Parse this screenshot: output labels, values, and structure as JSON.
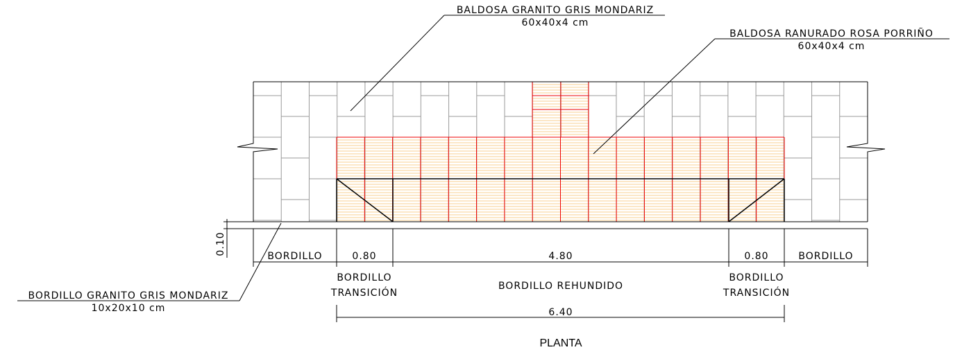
{
  "labels": {
    "top_tile": {
      "name": "BALDOSA GRANITO GRIS MONDARIZ",
      "size": "60x40x4 cm"
    },
    "tactile_tile": {
      "name": "BALDOSA RANURADO ROSA PORRIÑO",
      "size": "60x40x4 cm"
    },
    "curb": {
      "name": "BORDILLO GRANITO GRIS MONDARIZ",
      "size": "10x20x10 cm"
    }
  },
  "dimensions": {
    "curb_width": "0.10",
    "segments": [
      "BORDILLO",
      "0.80",
      "4.80",
      "0.80",
      "BORDILLO"
    ],
    "left_transition": [
      "BORDILLO",
      "TRANSICIÓN"
    ],
    "center": "BORDILLO REHUNDIDO",
    "right_transition": [
      "BORDILLO",
      "TRANSICIÓN"
    ],
    "total": "6.40"
  },
  "caption": "PLANTA"
}
